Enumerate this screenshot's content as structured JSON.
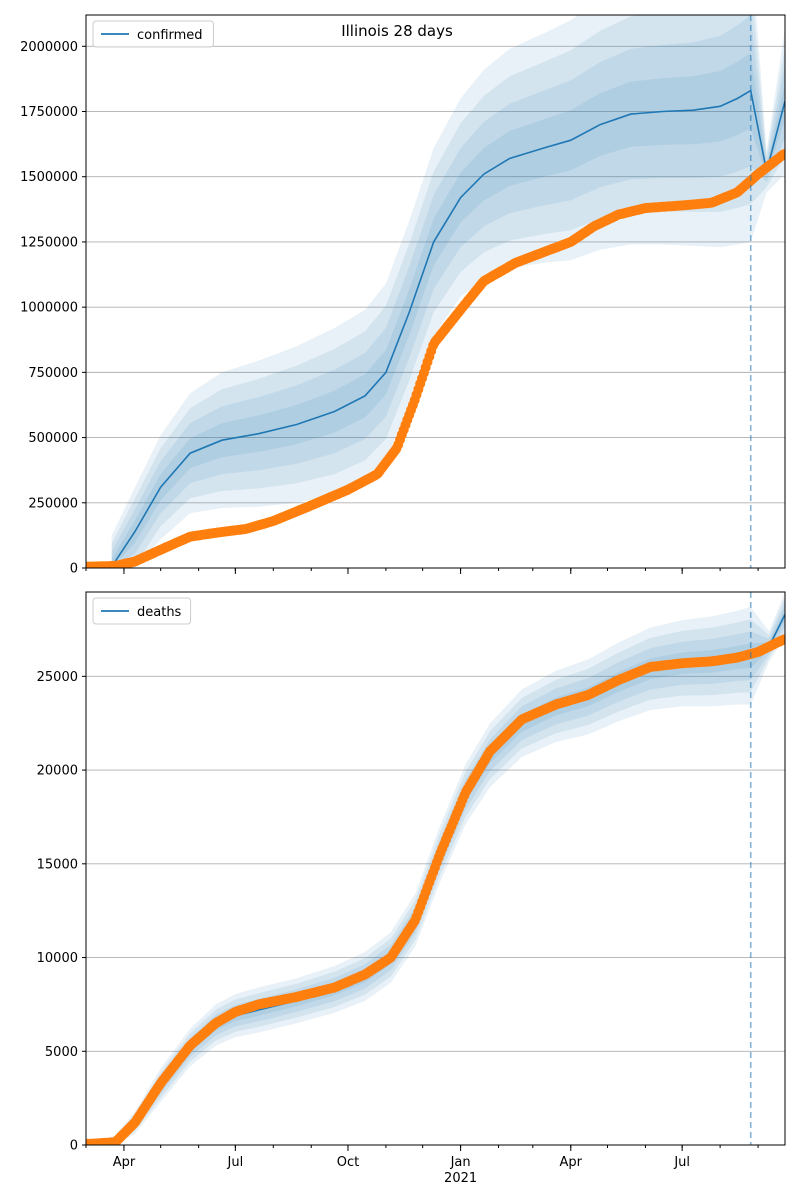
{
  "title": "Illinois 28 days",
  "colors": {
    "model": "#1f77b4",
    "observed": "#ff7f0e",
    "grid": "#b0b0b0",
    "band": "#1f77b4"
  },
  "x_axis": {
    "tick_labels": [
      "Apr",
      "Jul",
      "Oct",
      "Jan",
      "Apr",
      "Jul"
    ],
    "tick_dates": [
      "2020-04-01",
      "2020-07-01",
      "2020-10-01",
      "2021-01-01",
      "2021-04-01",
      "2021-07-01"
    ],
    "year_label": "2021",
    "range": [
      "2020-03-01",
      "2021-09-23"
    ],
    "forecast_start": "2021-08-26"
  },
  "chart_data": [
    {
      "type": "line",
      "legend": "confirmed",
      "legend_position": "top-left",
      "ylim": [
        0,
        2120000
      ],
      "yticks": [
        0,
        250000,
        500000,
        750000,
        1000000,
        1250000,
        1500000,
        1750000,
        2000000
      ],
      "ytick_labels": [
        "0",
        "250000",
        "500000",
        "750000",
        "1000000",
        "1250000",
        "1500000",
        "1750000",
        "2000000"
      ],
      "grid": "horizontal",
      "series": [
        {
          "name": "confirmed",
          "style": "line with shaded uncertainty bands",
          "x": [
            "2020-03-22",
            "2020-04-10",
            "2020-05-01",
            "2020-05-25",
            "2020-06-20",
            "2020-07-20",
            "2020-08-20",
            "2020-09-20",
            "2020-10-15",
            "2020-11-01",
            "2020-11-20",
            "2020-12-10",
            "2021-01-01",
            "2021-01-20",
            "2021-02-10",
            "2021-03-10",
            "2021-04-01",
            "2021-04-25",
            "2021-05-20",
            "2021-06-15",
            "2021-07-10",
            "2021-08-01",
            "2021-08-15",
            "2021-08-26",
            "2021-09-08",
            "2021-09-23"
          ],
          "values": [
            5000,
            140000,
            310000,
            440000,
            490000,
            515000,
            550000,
            600000,
            660000,
            750000,
            980000,
            1250000,
            1420000,
            1510000,
            1570000,
            1610000,
            1640000,
            1700000,
            1740000,
            1750000,
            1755000,
            1770000,
            1800000,
            1830000,
            1520000,
            1790000
          ],
          "band_width": [
            120000,
            170000,
            200000,
            230000,
            260000,
            280000,
            300000,
            320000,
            330000,
            340000,
            350000,
            360000,
            380000,
            400000,
            420000,
            440000,
            460000,
            480000,
            500000,
            510000,
            520000,
            540000,
            560000,
            580000,
            80000,
            280000
          ]
        },
        {
          "style": "markers",
          "x": [
            "2020-03-01",
            "2020-03-25",
            "2020-04-10",
            "2020-05-01",
            "2020-05-25",
            "2020-06-15",
            "2020-07-10",
            "2020-08-01",
            "2020-09-01",
            "2020-10-01",
            "2020-10-25",
            "2020-11-10",
            "2020-11-25",
            "2020-12-10",
            "2021-01-01",
            "2021-01-20",
            "2021-02-15",
            "2021-03-15",
            "2021-04-01",
            "2021-04-20",
            "2021-05-10",
            "2021-06-01",
            "2021-07-01",
            "2021-07-25",
            "2021-08-15",
            "2021-09-01",
            "2021-09-23"
          ],
          "values": [
            5000,
            8000,
            25000,
            70000,
            120000,
            135000,
            150000,
            180000,
            240000,
            300000,
            360000,
            460000,
            650000,
            860000,
            990000,
            1100000,
            1170000,
            1220000,
            1250000,
            1310000,
            1355000,
            1380000,
            1390000,
            1400000,
            1440000,
            1510000,
            1590000
          ]
        }
      ]
    },
    {
      "type": "line",
      "legend": "deaths",
      "legend_position": "top-left",
      "ylim": [
        0,
        29500
      ],
      "yticks": [
        0,
        5000,
        10000,
        15000,
        20000,
        25000
      ],
      "ytick_labels": [
        "0",
        "5000",
        "10000",
        "15000",
        "20000",
        "25000"
      ],
      "grid": "horizontal",
      "series": [
        {
          "name": "deaths",
          "style": "line with shaded uncertainty bands",
          "x": [
            "2020-03-01",
            "2020-03-25",
            "2020-04-10",
            "2020-05-01",
            "2020-05-25",
            "2020-06-15",
            "2020-07-01",
            "2020-07-20",
            "2020-08-20",
            "2020-09-20",
            "2020-10-15",
            "2020-11-05",
            "2020-11-25",
            "2020-12-15",
            "2021-01-05",
            "2021-01-25",
            "2021-02-20",
            "2021-03-20",
            "2021-04-15",
            "2021-05-10",
            "2021-06-05",
            "2021-07-01",
            "2021-07-25",
            "2021-08-15",
            "2021-08-26",
            "2021-09-10",
            "2021-09-23"
          ],
          "values": [
            50,
            200,
            1200,
            3200,
            5200,
            6400,
            6900,
            7200,
            7700,
            8300,
            9000,
            10000,
            12000,
            15500,
            18700,
            20800,
            22500,
            23400,
            23900,
            24700,
            25400,
            25700,
            25800,
            26000,
            26100,
            26600,
            28300
          ],
          "band_width": [
            0,
            300,
            600,
            900,
            1000,
            1100,
            1150,
            1200,
            1200,
            1250,
            1300,
            1350,
            1400,
            1500,
            1600,
            1700,
            1800,
            1900,
            2000,
            2100,
            2200,
            2300,
            2400,
            2500,
            2600,
            800,
            1200
          ]
        },
        {
          "style": "markers",
          "x": [
            "2020-03-01",
            "2020-03-25",
            "2020-04-10",
            "2020-05-01",
            "2020-05-25",
            "2020-06-15",
            "2020-07-01",
            "2020-07-20",
            "2020-08-20",
            "2020-09-20",
            "2020-10-15",
            "2020-11-05",
            "2020-11-25",
            "2020-12-15",
            "2021-01-05",
            "2021-01-25",
            "2021-02-20",
            "2021-03-20",
            "2021-04-15",
            "2021-05-10",
            "2021-06-05",
            "2021-07-01",
            "2021-07-25",
            "2021-08-15",
            "2021-09-01",
            "2021-09-23"
          ],
          "values": [
            50,
            150,
            1200,
            3300,
            5300,
            6500,
            7100,
            7500,
            7900,
            8400,
            9100,
            10000,
            12000,
            15500,
            18800,
            21000,
            22700,
            23500,
            24000,
            24800,
            25500,
            25700,
            25800,
            26000,
            26300,
            27000
          ]
        }
      ]
    }
  ]
}
